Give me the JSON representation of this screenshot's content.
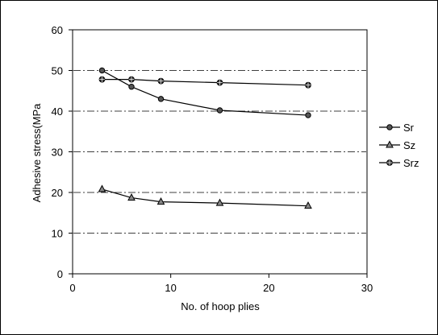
{
  "chart_data": {
    "type": "line",
    "title": "",
    "xlabel": "No. of hoop plies",
    "ylabel": "Adhesive stress(MPa",
    "xlim": [
      0,
      30
    ],
    "ylim": [
      0,
      60
    ],
    "xticks": [
      0,
      10,
      20,
      30
    ],
    "yticks": [
      0,
      10,
      20,
      30,
      40,
      50,
      60
    ],
    "grid": "horizontal dash-dot",
    "legend_position": "right",
    "series": [
      {
        "name": "Sr",
        "marker": "circle",
        "color": "#000000",
        "x": [
          3,
          6,
          9,
          15,
          24
        ],
        "y": [
          50.0,
          46.0,
          43.0,
          40.2,
          39.0
        ]
      },
      {
        "name": "Sz",
        "marker": "triangle",
        "color": "#000000",
        "x": [
          3,
          6,
          9,
          15,
          24
        ],
        "y": [
          20.8,
          18.7,
          17.7,
          17.4,
          16.7
        ]
      },
      {
        "name": "Srz",
        "marker": "circle-cross",
        "color": "#000000",
        "x": [
          3,
          6,
          9,
          15,
          24
        ],
        "y": [
          47.8,
          47.8,
          47.4,
          47.0,
          46.4
        ]
      }
    ]
  }
}
